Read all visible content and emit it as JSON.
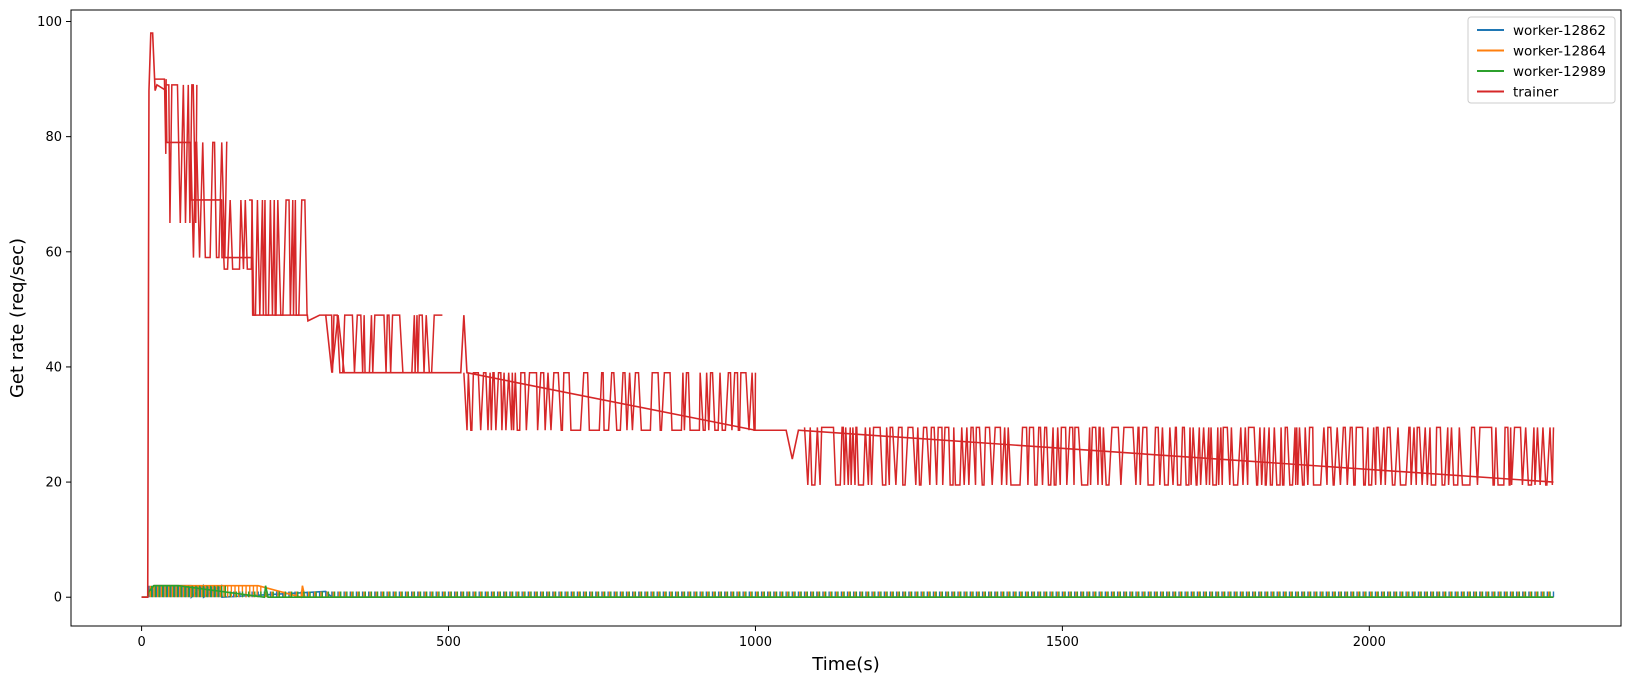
{
  "chart_data": {
    "type": "line",
    "xlabel": "Time(s)",
    "ylabel": "Get rate (req/sec)",
    "xlim": [
      -115,
      2410
    ],
    "ylim": [
      -5,
      102
    ],
    "xticks": [
      0,
      500,
      1000,
      1500,
      2000
    ],
    "yticks": [
      0,
      20,
      40,
      60,
      80,
      100
    ],
    "grid": false,
    "legend_position": "top-right",
    "series": [
      {
        "name": "worker-12862",
        "color": "#1f77b4",
        "x": [
          0,
          10,
          12,
          20,
          80,
          81,
          100,
          101,
          130,
          131,
          300,
          310,
          2300
        ],
        "values": [
          0,
          0,
          1,
          2,
          2,
          0,
          2,
          0,
          2,
          0,
          1,
          0,
          0
        ],
        "spike_segments": [
          {
            "x0": 12,
            "x1": 130,
            "interval": 6,
            "high": 2
          },
          {
            "x0": 130,
            "x1": 2300,
            "interval": 10,
            "high": 1
          }
        ]
      },
      {
        "name": "worker-12864",
        "color": "#ff7f0e",
        "x": [
          0,
          10,
          12,
          20,
          150,
          190,
          260,
          262,
          266,
          2300
        ],
        "values": [
          0,
          0,
          1,
          2,
          2,
          2,
          0,
          2,
          0,
          0
        ],
        "spike_segments": [
          {
            "x0": 12,
            "x1": 200,
            "interval": 6,
            "high": 2
          },
          {
            "x0": 200,
            "x1": 2300,
            "interval": 10,
            "high": 1
          }
        ]
      },
      {
        "name": "worker-12989",
        "color": "#2ca02c",
        "x": [
          0,
          10,
          12,
          20,
          60,
          200,
          202,
          206,
          2300
        ],
        "values": [
          0,
          0,
          1,
          2,
          2,
          0,
          2,
          0,
          0
        ],
        "spike_segments": [
          {
            "x0": 12,
            "x1": 140,
            "interval": 6,
            "high": 2
          },
          {
            "x0": 140,
            "x1": 2300,
            "interval": 10,
            "high": 1
          }
        ]
      },
      {
        "name": "trainer",
        "color": "#d62728",
        "x": [
          0,
          10,
          12,
          15,
          18,
          22,
          25,
          40,
          41,
          80,
          81,
          130,
          131,
          180,
          181,
          270,
          271,
          290,
          300,
          310,
          320,
          330,
          460,
          470,
          520,
          525,
          530,
          1000,
          1050,
          1060,
          1070,
          2300
        ],
        "values": [
          0,
          0,
          88,
          98,
          98,
          88,
          89,
          88,
          79,
          79,
          69,
          69,
          59,
          59,
          49,
          49,
          48,
          49,
          49,
          39,
          49,
          39,
          39,
          39,
          39,
          49,
          39,
          29,
          29,
          24,
          29,
          20
        ],
        "bands": [
          {
            "x0": 22,
            "x1": 40,
            "low": 77,
            "high": 90
          },
          {
            "x0": 40,
            "x1": 90,
            "low": 65,
            "high": 89
          },
          {
            "x0": 80,
            "x1": 140,
            "low": 59,
            "high": 79
          },
          {
            "x0": 130,
            "x1": 180,
            "low": 57,
            "high": 69
          },
          {
            "x0": 175,
            "x1": 270,
            "low": 49,
            "high": 69
          },
          {
            "x0": 300,
            "x1": 490,
            "low": 39,
            "high": 49
          },
          {
            "x0": 525,
            "x1": 1000,
            "low": 29,
            "high": 39
          },
          {
            "x0": 1080,
            "x1": 2300,
            "low": 19.5,
            "high": 29.5
          }
        ]
      }
    ]
  }
}
